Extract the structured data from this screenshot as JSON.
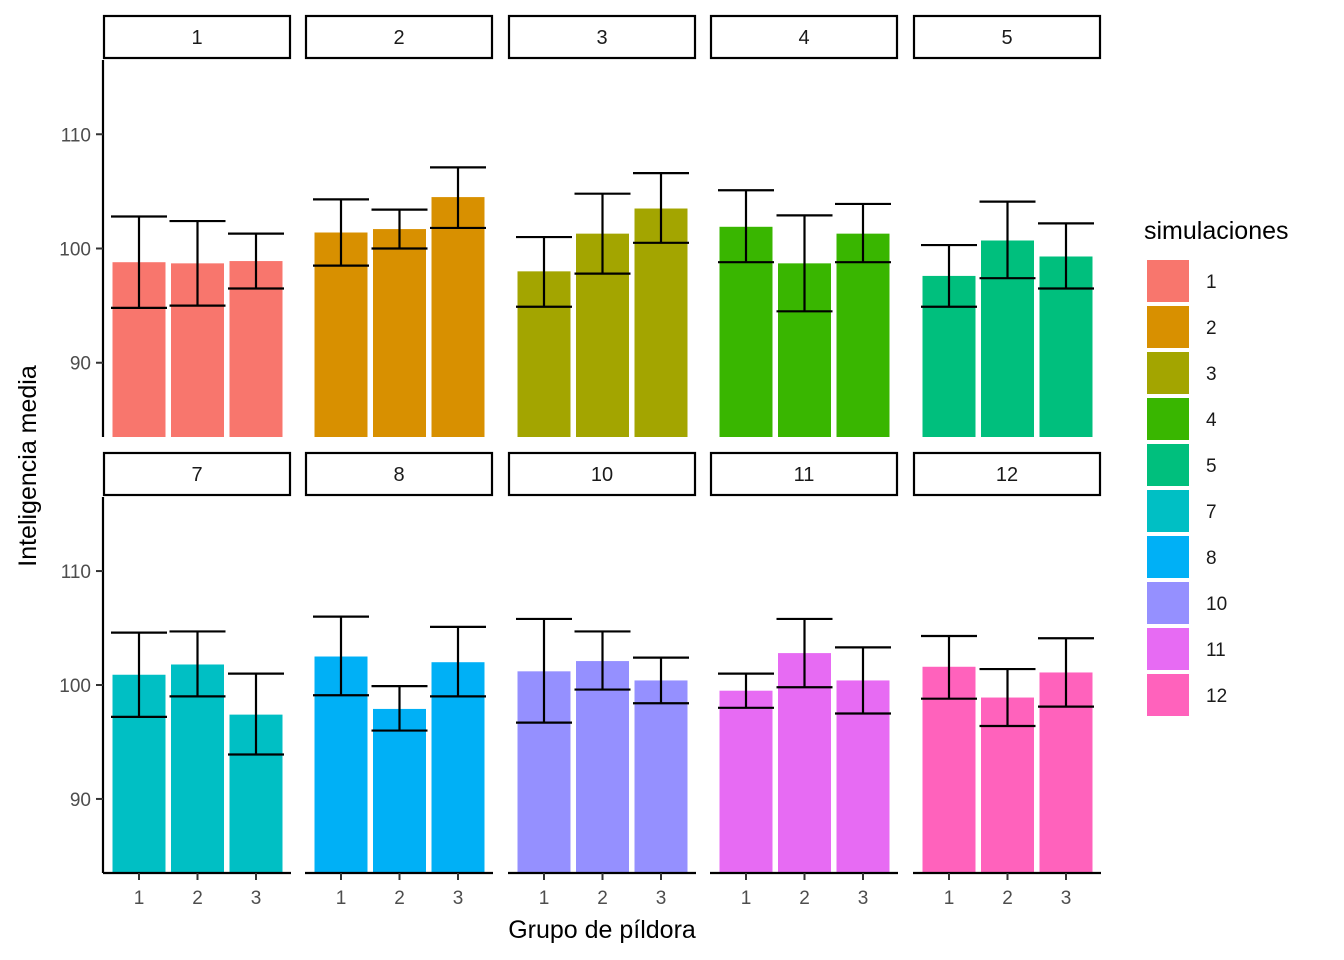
{
  "chart_data": {
    "type": "bar",
    "xlabel": "Grupo de píldora",
    "ylabel": "Inteligencia media",
    "ylim": [
      83.5,
      116.5
    ],
    "yticks": [
      90,
      100,
      110
    ],
    "categories": [
      "1",
      "2",
      "3"
    ],
    "legend": {
      "title": "simulaciones",
      "position": "right"
    },
    "grid": false,
    "facets": [
      {
        "label": "1",
        "color": "#F8766D",
        "values": [
          98.8,
          98.7,
          98.9
        ],
        "err_low": [
          94.8,
          95.0,
          96.5
        ],
        "err_high": [
          102.8,
          102.4,
          101.3
        ]
      },
      {
        "label": "2",
        "color": "#D89000",
        "values": [
          101.4,
          101.7,
          104.5
        ],
        "err_low": [
          98.5,
          100.0,
          101.8
        ],
        "err_high": [
          104.3,
          103.4,
          107.1
        ]
      },
      {
        "label": "3",
        "color": "#A3A500",
        "values": [
          98.0,
          101.3,
          103.5
        ],
        "err_low": [
          94.9,
          97.8,
          100.5
        ],
        "err_high": [
          101.0,
          104.8,
          106.6
        ]
      },
      {
        "label": "4",
        "color": "#39B600",
        "values": [
          101.9,
          98.7,
          101.3
        ],
        "err_low": [
          98.8,
          94.5,
          98.8
        ],
        "err_high": [
          105.1,
          102.9,
          103.9
        ]
      },
      {
        "label": "5",
        "color": "#00BF7D",
        "values": [
          97.6,
          100.7,
          99.3
        ],
        "err_low": [
          94.9,
          97.4,
          96.5
        ],
        "err_high": [
          100.3,
          104.1,
          102.2
        ]
      },
      {
        "label": "7",
        "color": "#00BFC4",
        "values": [
          100.9,
          101.8,
          97.4
        ],
        "err_low": [
          97.2,
          99.0,
          93.9
        ],
        "err_high": [
          104.6,
          104.7,
          101.0
        ]
      },
      {
        "label": "8",
        "color": "#00B0F6",
        "values": [
          102.5,
          97.9,
          102.0
        ],
        "err_low": [
          99.1,
          96.0,
          99.0
        ],
        "err_high": [
          106.0,
          99.9,
          105.1
        ]
      },
      {
        "label": "10",
        "color": "#9590FF",
        "values": [
          101.2,
          102.1,
          100.4
        ],
        "err_low": [
          96.7,
          99.6,
          98.4
        ],
        "err_high": [
          105.8,
          104.7,
          102.4
        ]
      },
      {
        "label": "11",
        "color": "#E76BF3",
        "values": [
          99.5,
          102.8,
          100.4
        ],
        "err_low": [
          98.0,
          99.8,
          97.5
        ],
        "err_high": [
          101.0,
          105.8,
          103.3
        ]
      },
      {
        "label": "12",
        "color": "#FF62BC",
        "values": [
          101.6,
          98.9,
          101.1
        ],
        "err_low": [
          98.8,
          96.4,
          98.1
        ],
        "err_high": [
          104.3,
          101.4,
          104.1
        ]
      }
    ]
  }
}
